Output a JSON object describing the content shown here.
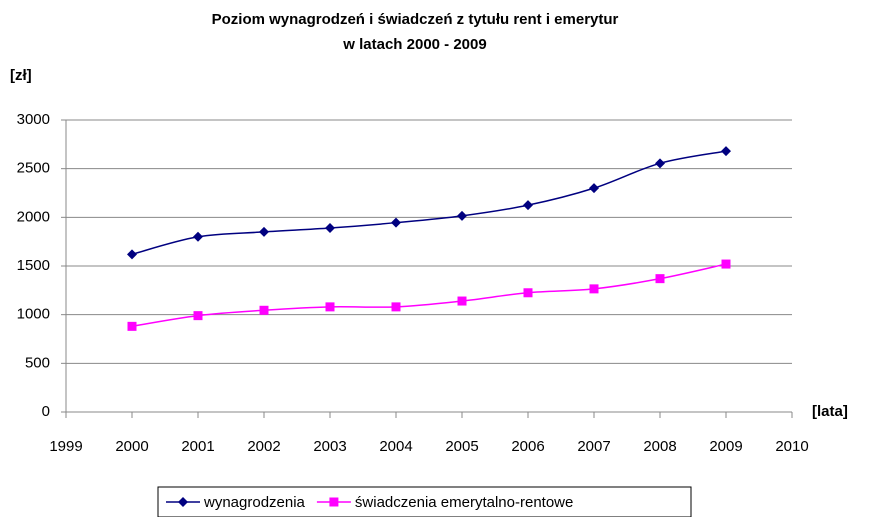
{
  "chart_data": {
    "type": "line",
    "title": "Poziom wynagrodzeń i świadczeń z tytułu rent i emerytur",
    "subtitle": "w latach 2000 - 2009",
    "y_label": "[zł]",
    "x_label": "[lata]",
    "x": [
      2000,
      2001,
      2002,
      2003,
      2004,
      2005,
      2006,
      2007,
      2008,
      2009
    ],
    "series": [
      {
        "name": "wynagrodzenia",
        "color": "#000080",
        "marker": "diamond",
        "values": [
          1620,
          1800,
          1850,
          1890,
          1945,
          2015,
          2125,
          2300,
          2555,
          2680
        ]
      },
      {
        "name": "świadczenia emerytalno-rentowe",
        "color": "#ff00ff",
        "marker": "square",
        "values": [
          880,
          990,
          1045,
          1080,
          1080,
          1140,
          1225,
          1265,
          1370,
          1520
        ]
      }
    ],
    "xlim": [
      1999,
      2010
    ],
    "xticks": [
      1999,
      2000,
      2001,
      2002,
      2003,
      2004,
      2005,
      2006,
      2007,
      2008,
      2009,
      2010
    ],
    "ylim": [
      0,
      3000
    ],
    "yticks": [
      0,
      500,
      1000,
      1500,
      2000,
      2500,
      3000
    ],
    "grid": true,
    "legend": "bottom"
  }
}
